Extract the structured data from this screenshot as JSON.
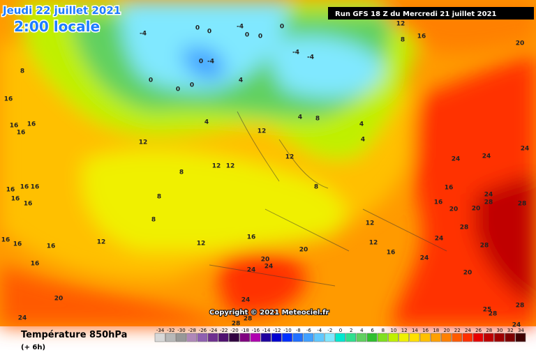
{
  "header": {
    "date": "Jeudi 22 juillet 2021",
    "time": "2:00 locale",
    "run": "Run GFS 18 Z du Mercredi 21 juillet 2021"
  },
  "copyright": "Copyright © 2021 Meteociel.fr",
  "map": {
    "labels": [
      -4,
      0,
      0,
      -4,
      0,
      0,
      0,
      -4,
      -4,
      0,
      -4,
      0,
      0,
      0,
      4,
      4,
      4,
      8,
      4,
      4,
      12,
      8,
      16,
      20,
      8,
      16,
      16,
      16,
      16,
      12,
      12,
      12,
      12,
      12,
      8,
      8,
      8,
      8,
      12,
      12,
      16,
      16,
      16,
      16,
      16,
      20,
      20,
      24,
      24,
      24,
      20,
      24,
      24,
      24,
      24,
      24,
      28,
      28,
      20,
      20,
      16,
      16,
      24,
      24,
      28,
      28,
      20,
      16,
      12,
      12,
      25,
      28,
      28,
      24,
      28,
      28,
      16,
      16,
      16,
      16,
      16
    ]
  },
  "legend": {
    "title": "Température 850hPa",
    "subtitle": "(+ 6h)",
    "ticks": [
      -34,
      -32,
      -30,
      -28,
      -26,
      -24,
      -22,
      -20,
      -18,
      -16,
      -14,
      -12,
      -10,
      -8,
      -6,
      -4,
      -2,
      0,
      2,
      4,
      6,
      8,
      10,
      12,
      14,
      16,
      18,
      20,
      22,
      24,
      26,
      28,
      30,
      32,
      34
    ],
    "colors": [
      "#d8d8d8",
      "#b8b8b8",
      "#989898",
      "#b088b8",
      "#9060b0",
      "#703090",
      "#501070",
      "#300040",
      "#800080",
      "#b000b0",
      "#2000a0",
      "#0000d0",
      "#0030ff",
      "#2070ff",
      "#40a0ff",
      "#60c8ff",
      "#80e8ff",
      "#00e8d0",
      "#30e090",
      "#60d060",
      "#30c030",
      "#80e020",
      "#c0f000",
      "#f0f000",
      "#ffe000",
      "#ffc000",
      "#ffa000",
      "#ff8000",
      "#ff5a00",
      "#ff3000",
      "#e80000",
      "#c00000",
      "#a00000",
      "#800000",
      "#400000"
    ]
  }
}
